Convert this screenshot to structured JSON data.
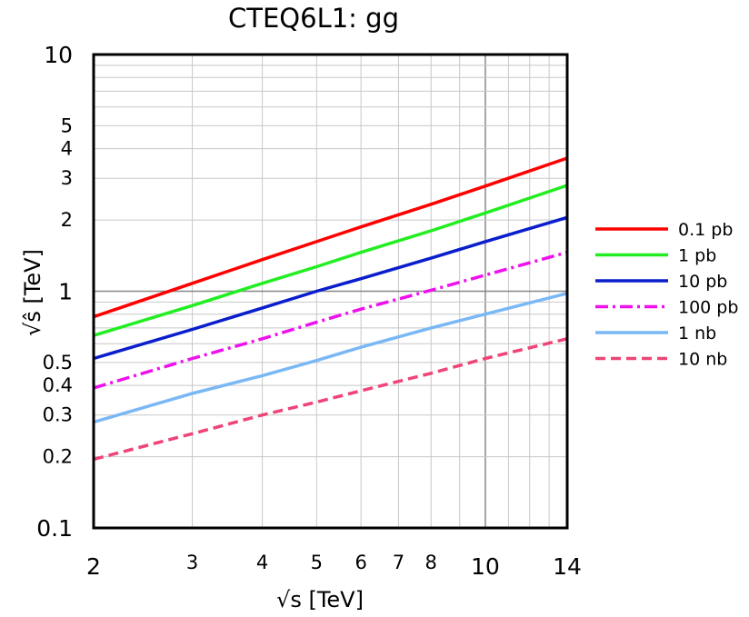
{
  "chart_data": {
    "type": "line",
    "title": "CTEQ6L1: gg",
    "xlabel": "√s  [TeV]",
    "ylabel": "√ŝ [TeV]",
    "xscale": "log",
    "yscale": "log",
    "xlim": [
      2,
      14
    ],
    "ylim": [
      0.1,
      10
    ],
    "xticks": [
      2,
      3,
      4,
      5,
      6,
      7,
      8,
      10,
      14
    ],
    "xtick_labels": [
      "2",
      "3",
      "4",
      "5",
      "6",
      "7",
      "8",
      "10",
      "14"
    ],
    "yticks": [
      0.1,
      0.2,
      0.3,
      0.4,
      0.5,
      1,
      2,
      3,
      4,
      5,
      10
    ],
    "ytick_labels": [
      "0.1",
      "0.2",
      "0.3",
      "0.4",
      "0.5",
      "1",
      "2",
      "3",
      "4",
      "5",
      "10"
    ],
    "grid": true,
    "legend_position": "right",
    "series": [
      {
        "name": "0.1 pb",
        "color": "#ff0000",
        "dash": "solid",
        "points": [
          [
            2,
            0.78
          ],
          [
            3,
            1.08
          ],
          [
            4,
            1.36
          ],
          [
            5,
            1.62
          ],
          [
            6,
            1.87
          ],
          [
            8,
            2.33
          ],
          [
            10,
            2.78
          ],
          [
            14,
            3.65
          ]
        ]
      },
      {
        "name": "1 pb",
        "color": "#22ee22",
        "dash": "solid",
        "points": [
          [
            2,
            0.65
          ],
          [
            3,
            0.87
          ],
          [
            4,
            1.08
          ],
          [
            5,
            1.27
          ],
          [
            6,
            1.46
          ],
          [
            8,
            1.8
          ],
          [
            10,
            2.14
          ],
          [
            14,
            2.8
          ]
        ]
      },
      {
        "name": "10 pb",
        "color": "#0a1ecc",
        "dash": "solid",
        "points": [
          [
            2,
            0.52
          ],
          [
            3,
            0.69
          ],
          [
            4,
            0.85
          ],
          [
            5,
            1.0
          ],
          [
            6,
            1.13
          ],
          [
            8,
            1.38
          ],
          [
            10,
            1.62
          ],
          [
            14,
            2.05
          ]
        ]
      },
      {
        "name": "100 pb",
        "color": "#ee11ee",
        "dash": "dashdot",
        "points": [
          [
            2,
            0.39
          ],
          [
            3,
            0.52
          ],
          [
            4,
            0.63
          ],
          [
            5,
            0.74
          ],
          [
            6,
            0.84
          ],
          [
            8,
            1.01
          ],
          [
            10,
            1.17
          ],
          [
            14,
            1.46
          ]
        ]
      },
      {
        "name": "1 nb",
        "color": "#7ab8f5",
        "dash": "solid",
        "points": [
          [
            2,
            0.28
          ],
          [
            3,
            0.37
          ],
          [
            4,
            0.44
          ],
          [
            5,
            0.51
          ],
          [
            6,
            0.58
          ],
          [
            8,
            0.7
          ],
          [
            10,
            0.8
          ],
          [
            14,
            0.98
          ]
        ]
      },
      {
        "name": "10 nb",
        "color": "#ee4477",
        "dash": "dashed",
        "points": [
          [
            2,
            0.195
          ],
          [
            3,
            0.25
          ],
          [
            4,
            0.3
          ],
          [
            5,
            0.34
          ],
          [
            6,
            0.38
          ],
          [
            8,
            0.45
          ],
          [
            10,
            0.52
          ],
          [
            14,
            0.63
          ]
        ]
      }
    ]
  }
}
